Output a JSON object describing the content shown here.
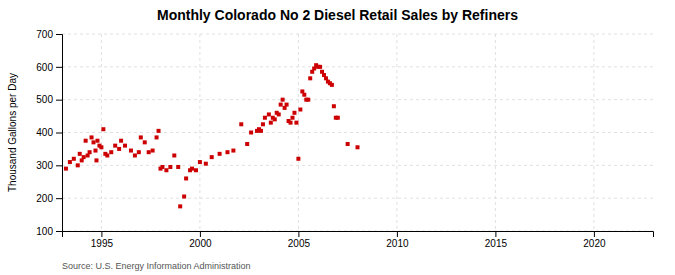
{
  "chart_data": {
    "type": "scatter",
    "title": "Monthly Colorado No 2 Diesel Retail Sales by Refiners",
    "ylabel": "Thousand Gallons per Day",
    "source": "Source: U.S. Energy Information Administration",
    "color": "#cc0000",
    "marker": "square",
    "grid": true,
    "xlim": [
      1993.0,
      2023.0
    ],
    "ylim": [
      100,
      700
    ],
    "xticks": [
      1995,
      2000,
      2005,
      2010,
      2015,
      2020
    ],
    "yticks": [
      100,
      200,
      300,
      400,
      500,
      600,
      700
    ],
    "x": [
      1993.2,
      1993.4,
      1993.6,
      1993.8,
      1993.9,
      1994.0,
      1994.1,
      1994.2,
      1994.3,
      1994.4,
      1994.5,
      1994.6,
      1994.7,
      1994.75,
      1994.8,
      1994.9,
      1995.0,
      1995.1,
      1995.2,
      1995.3,
      1995.5,
      1995.7,
      1995.9,
      1996.0,
      1996.2,
      1996.5,
      1996.7,
      1996.9,
      1997.0,
      1997.2,
      1997.4,
      1997.6,
      1997.8,
      1997.9,
      1998.0,
      1998.1,
      1998.3,
      1998.5,
      1998.7,
      1998.9,
      1999.0,
      1999.2,
      1999.3,
      1999.5,
      1999.6,
      1999.8,
      2000.0,
      2000.3,
      2000.6,
      2001.0,
      2001.4,
      2001.7,
      2002.1,
      2002.4,
      2002.6,
      2002.9,
      2003.0,
      2003.1,
      2003.2,
      2003.3,
      2003.5,
      2003.6,
      2003.7,
      2003.8,
      2003.9,
      2004.0,
      2004.1,
      2004.2,
      2004.3,
      2004.4,
      2004.5,
      2004.6,
      2004.7,
      2004.8,
      2004.9,
      2005.0,
      2005.1,
      2005.2,
      2005.3,
      2005.4,
      2005.5,
      2005.6,
      2005.7,
      2005.8,
      2005.9,
      2006.0,
      2006.1,
      2006.2,
      2006.3,
      2006.4,
      2006.5,
      2006.6,
      2006.7,
      2006.8,
      2006.9,
      2007.0,
      2007.5,
      2008.0
    ],
    "values": [
      290,
      310,
      320,
      300,
      335,
      315,
      325,
      375,
      330,
      340,
      385,
      370,
      345,
      315,
      375,
      360,
      355,
      410,
      335,
      330,
      340,
      360,
      350,
      375,
      360,
      345,
      330,
      340,
      385,
      370,
      340,
      345,
      385,
      405,
      290,
      295,
      285,
      295,
      330,
      295,
      175,
      205,
      260,
      285,
      290,
      285,
      310,
      305,
      325,
      335,
      340,
      345,
      425,
      365,
      400,
      405,
      410,
      405,
      425,
      445,
      455,
      430,
      445,
      440,
      460,
      455,
      485,
      500,
      475,
      485,
      435,
      430,
      445,
      460,
      430,
      320,
      470,
      525,
      515,
      500,
      500,
      565,
      585,
      595,
      605,
      600,
      600,
      585,
      575,
      565,
      555,
      550,
      545,
      480,
      445,
      445,
      365,
      355
    ]
  }
}
